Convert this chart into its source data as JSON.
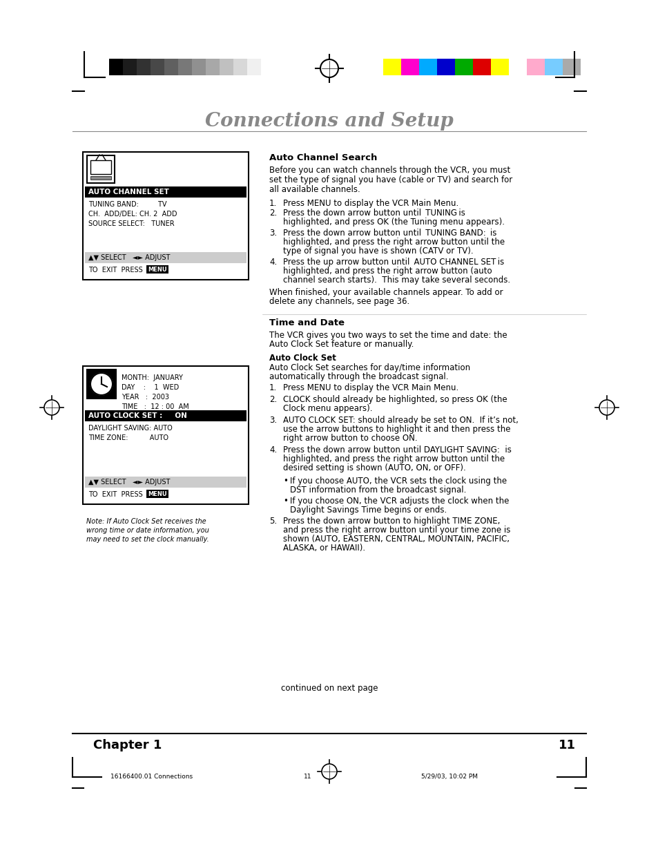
{
  "page_bg": "#ffffff",
  "title": "Connections and Setup",
  "title_color": "#888888",
  "title_fontsize": 20,
  "chapter_text": "Chapter 1",
  "page_num": "11",
  "footer_left": "16166400.01 Connections",
  "footer_center": "11",
  "footer_right": "5/29/03, 10:02 PM",
  "section1_heading": "Auto Channel Search",
  "section2_heading": "Time and Date",
  "section2_sub": "Auto Clock Set",
  "continued": "continued on next page",
  "note_text": "Note: If Auto Clock Set receives the\nwrong time or date information, you\nmay need to set the clock manually.",
  "grayscale_colors": [
    "#000000",
    "#1c1c1c",
    "#323232",
    "#484848",
    "#606060",
    "#787878",
    "#909090",
    "#a8a8a8",
    "#c0c0c0",
    "#d8d8d8",
    "#f0f0f0",
    "#ffffff"
  ],
  "color_bars": [
    "#ffff00",
    "#ff00cc",
    "#00aaff",
    "#0000cc",
    "#00aa00",
    "#dd0000",
    "#ffff00",
    "#ffffff",
    "#ffaacc",
    "#77ccff",
    "#aaaaaa"
  ],
  "vcr_menu1_highlighted": "AUTO CHANNEL SET",
  "vcr_menu1_lines": [
    "TUNING BAND:         TV",
    "CH.  ADD/DEL: CH. 2  ADD",
    "SOURCE SELECT:   TUNER"
  ],
  "vcr_menu1_nav1": "▲▼ SELECT   ◄► ADJUST",
  "vcr_menu1_nav2": "TO  EXIT  PRESS ",
  "vcr_menu2_top": [
    "MONTH:  JANUARY",
    "DAY    :    1  WED",
    "YEAR   :  2003",
    "TIME   :  12 : 00  AM"
  ],
  "vcr_menu2_highlighted": "AUTO CLOCK SET :     ON",
  "vcr_menu2_lines": [
    "DAYLIGHT SAVING: AUTO",
    "TIME ZONE:          AUTO"
  ],
  "vcr_menu2_nav1": "▲▼ SELECT   ◄► ADJUST",
  "vcr_menu2_nav2": "TO  EXIT  PRESS "
}
